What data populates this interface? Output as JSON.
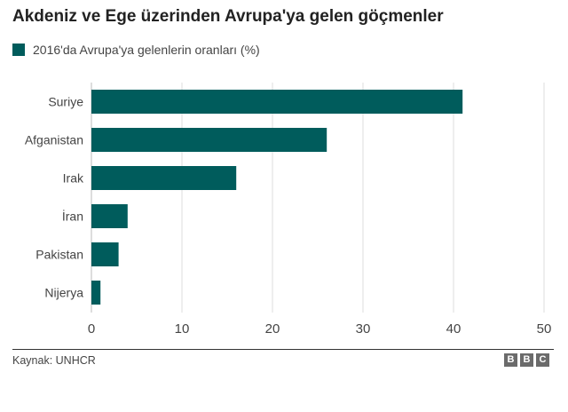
{
  "title": "Akdeniz ve Ege üzerinden Avrupa'ya gelen göçmenler",
  "source": "Kaynak: UNHCR",
  "logo": [
    "B",
    "B",
    "C"
  ],
  "colors": {
    "bar": "#005c5c",
    "grid": "#dddddd",
    "axis": "#333333",
    "text": "#444444"
  },
  "chart_data": {
    "type": "bar",
    "orientation": "horizontal",
    "title": "Akdeniz ve Ege üzerinden Avrupa'ya gelen göçmenler",
    "legend": "2016'da Avrupa'ya gelenlerin oranları (%)",
    "categories": [
      "Suriye",
      "Afganistan",
      "Irak",
      "İran",
      "Pakistan",
      "Nijerya"
    ],
    "series": [
      {
        "name": "2016'da Avrupa'ya gelenlerin oranları (%)",
        "values": [
          41,
          26,
          16,
          4,
          3,
          1
        ]
      }
    ],
    "xlim": [
      0,
      50
    ],
    "xticks": [
      0,
      10,
      20,
      30,
      40,
      50
    ],
    "grid": true,
    "legend_position": "top-left"
  }
}
